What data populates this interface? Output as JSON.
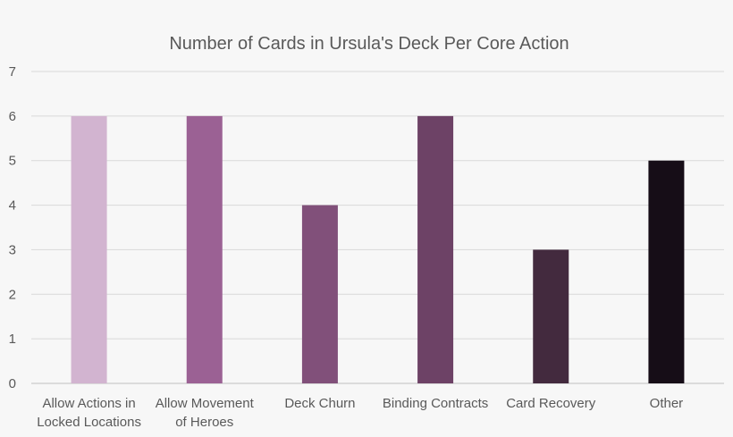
{
  "chart_data": {
    "type": "bar",
    "title": "Number of Cards in Ursula's Deck Per Core Action",
    "xlabel": "",
    "ylabel": "",
    "ylim": [
      0,
      7
    ],
    "yticks": [
      0,
      1,
      2,
      3,
      4,
      5,
      6,
      7
    ],
    "grid": true,
    "legend": "none",
    "categories": [
      [
        "Allow Actions in",
        "Locked Locations"
      ],
      [
        "Allow Movement",
        "of Heroes"
      ],
      [
        "Deck Churn"
      ],
      [
        "Binding Contracts"
      ],
      [
        "Card Recovery"
      ],
      [
        "Other"
      ]
    ],
    "values": [
      6,
      6,
      4,
      6,
      3,
      5
    ],
    "colors": [
      "#d2b4d0",
      "#9b6194",
      "#81507a",
      "#6d4266",
      "#432a3e",
      "#160d17"
    ]
  }
}
